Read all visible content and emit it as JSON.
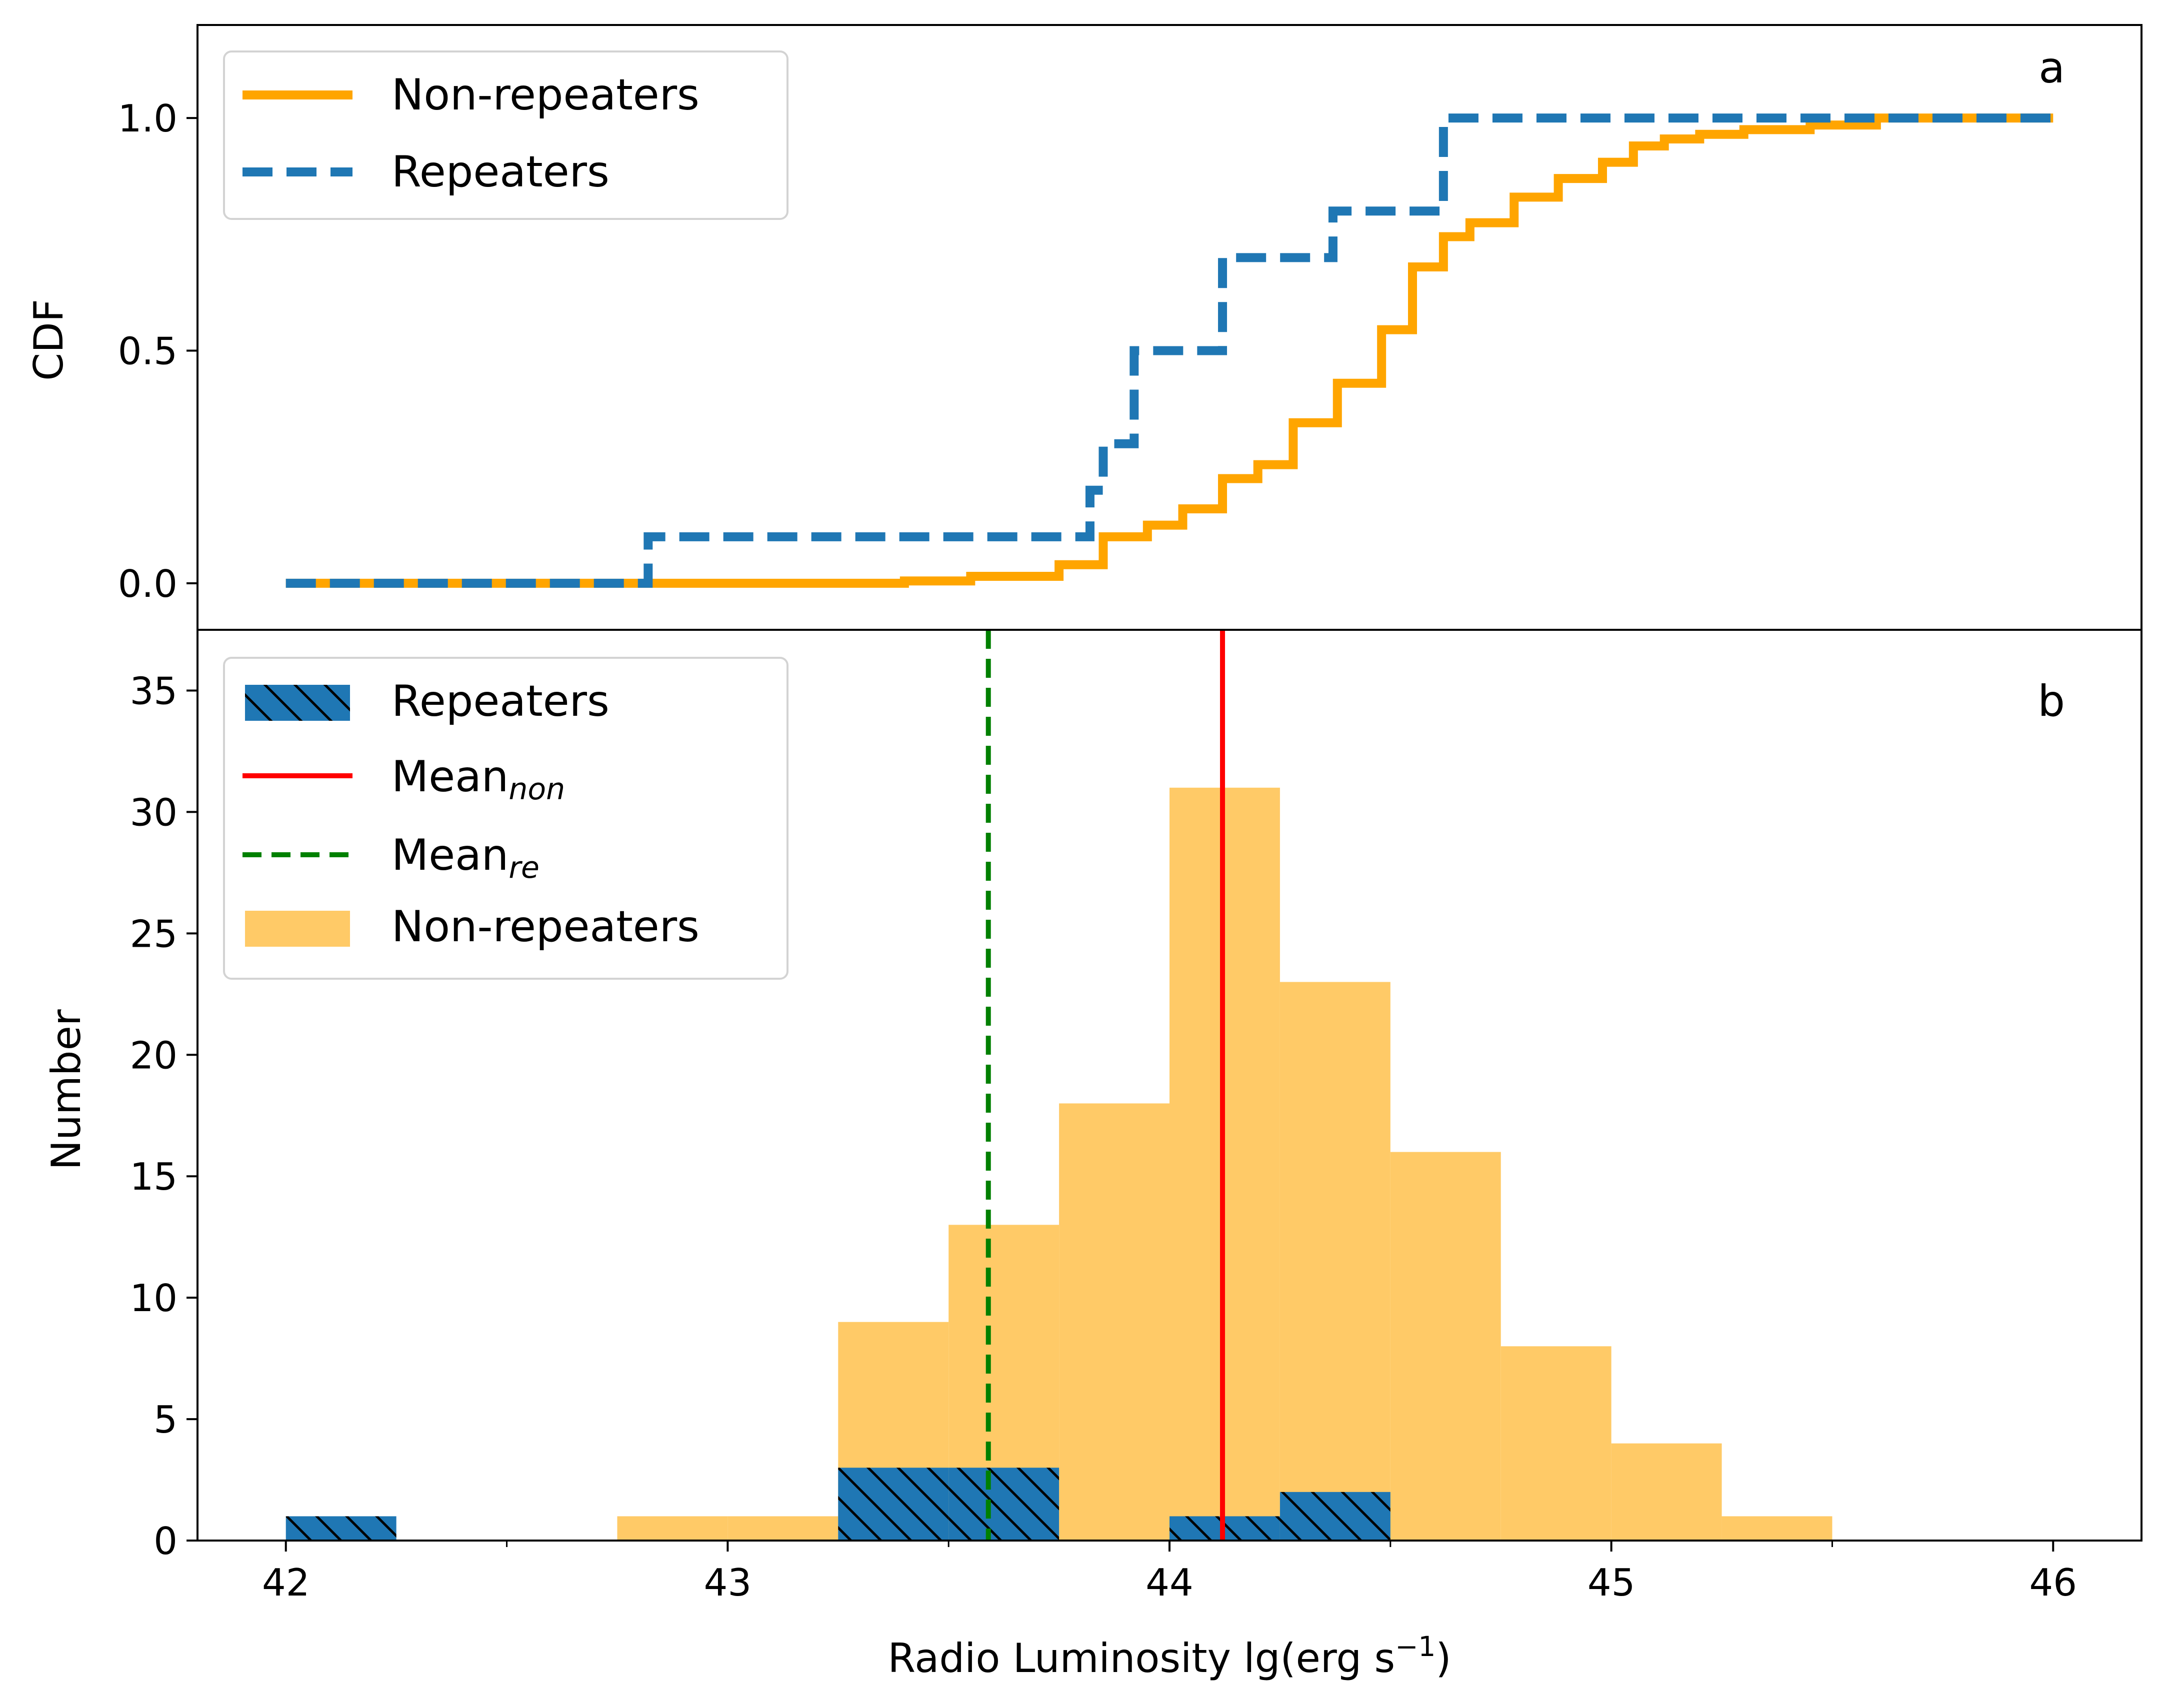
{
  "figure": {
    "panel_a_letter": "a",
    "panel_b_letter": "b",
    "colors": {
      "non_repeaters": "#FFA500",
      "repeaters": "#1F77B4",
      "hist_non": "#FFCA67",
      "mean_non": "#FF0000",
      "mean_re": "#008000"
    }
  },
  "chart_data": [
    {
      "type": "line",
      "panel": "a",
      "ylabel": "CDF",
      "yticks": [
        "0.0",
        "0.5",
        "1.0"
      ],
      "ylim": [
        -0.1,
        1.2
      ],
      "xlim": [
        41.8,
        46.2
      ],
      "legend": {
        "placement": "upper-left",
        "entries": [
          "Non-repeaters",
          "Repeaters"
        ]
      },
      "series": [
        {
          "name": "Non-repeaters",
          "style": "solid-step",
          "x": [
            42.0,
            42.8,
            43.0,
            43.4,
            43.55,
            43.75,
            43.85,
            43.95,
            44.03,
            44.12,
            44.2,
            44.28,
            44.38,
            44.48,
            44.55,
            44.62,
            44.68,
            44.78,
            44.88,
            44.98,
            45.05,
            45.12,
            45.2,
            45.3,
            45.45,
            45.6,
            46.0
          ],
          "y": [
            0.0,
            0.0,
            0.0,
            0.005,
            0.015,
            0.04,
            0.1,
            0.125,
            0.16,
            0.225,
            0.255,
            0.345,
            0.43,
            0.545,
            0.68,
            0.745,
            0.775,
            0.83,
            0.87,
            0.905,
            0.94,
            0.955,
            0.965,
            0.975,
            0.985,
            1.0,
            1.0
          ]
        },
        {
          "name": "Repeaters",
          "style": "dashed-step",
          "x": [
            42.0,
            42.82,
            43.82,
            43.85,
            43.92,
            44.12,
            44.37,
            44.62,
            46.0
          ],
          "y": [
            0.0,
            0.1,
            0.2,
            0.3,
            0.5,
            0.7,
            0.8,
            1.0,
            1.0
          ]
        }
      ]
    },
    {
      "type": "bar",
      "panel": "b",
      "xlabel": "Radio Luminosity lg(erg s⁻¹)",
      "ylabel": "Number",
      "xticks": [
        "42",
        "43",
        "44",
        "45",
        "46"
      ],
      "yticks": [
        "0",
        "5",
        "10",
        "15",
        "20",
        "25",
        "30",
        "35"
      ],
      "xlim": [
        41.8,
        46.2
      ],
      "ylim": [
        0,
        37.5
      ],
      "bin_width": 0.25,
      "legend": {
        "placement": "upper-left",
        "entries": [
          {
            "label": "Repeaters"
          },
          {
            "label": "Mean",
            "sub": "non"
          },
          {
            "label": "Mean",
            "sub": "re"
          },
          {
            "label": "Non-repeaters"
          }
        ]
      },
      "series": [
        {
          "name": "Non-repeaters",
          "bin_left": [
            42.75,
            43.0,
            43.25,
            43.5,
            43.75,
            44.0,
            44.25,
            44.5,
            44.75,
            45.0,
            45.25
          ],
          "values": [
            1,
            1,
            9,
            13,
            18,
            31,
            23,
            16,
            8,
            4,
            1
          ]
        },
        {
          "name": "Repeaters",
          "bin_left": [
            42.0,
            43.25,
            43.5,
            44.0,
            44.25
          ],
          "values": [
            1,
            3,
            3,
            1,
            2
          ]
        }
      ],
      "vlines": [
        {
          "name": "Mean_non",
          "x": 44.12
        },
        {
          "name": "Mean_re",
          "x": 43.59
        }
      ]
    }
  ]
}
